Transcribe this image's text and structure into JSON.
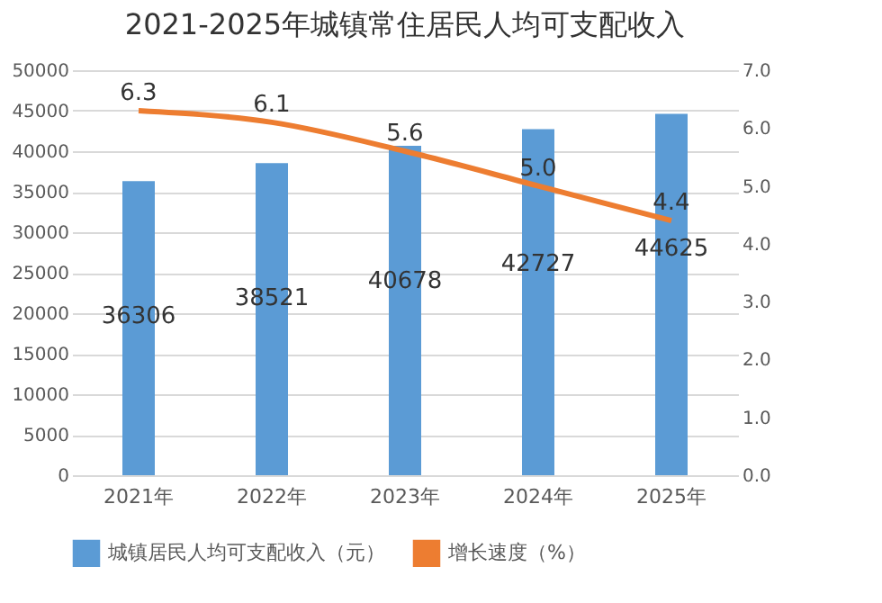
{
  "chart_data": {
    "type": "bar",
    "title": "2021-2025年城镇常住居民人均可支配收入",
    "categories": [
      "2021年",
      "2022年",
      "2023年",
      "2024年",
      "2025年"
    ],
    "series": [
      {
        "name": "城镇居民人均可支配收入（元）",
        "color": "#5b9bd5",
        "values": [
          36306,
          38521,
          40678,
          42727,
          44625
        ],
        "value_labels": [
          "36306",
          "38521",
          "40678",
          "42727",
          "44625"
        ]
      },
      {
        "name": "增长速度（%）",
        "type": "line",
        "axis": "y2",
        "color": "#ed7d31",
        "values": [
          6.3,
          6.1,
          5.6,
          5.0,
          4.4
        ],
        "value_labels": [
          "6.3",
          "6.1",
          "5.6",
          "5.0",
          "4.4"
        ]
      }
    ],
    "ylim": [
      0,
      50000
    ],
    "yticks": [
      0,
      5000,
      10000,
      15000,
      20000,
      25000,
      30000,
      35000,
      40000,
      45000,
      50000
    ],
    "y2lim": [
      0,
      7
    ],
    "y2ticks": [
      {
        "value": 0,
        "label": "0.0"
      },
      {
        "value": 1,
        "label": "1.0"
      },
      {
        "value": 2,
        "label": "2.0"
      },
      {
        "value": 3,
        "label": "3.0"
      },
      {
        "value": 4,
        "label": "4.0"
      },
      {
        "value": 5,
        "label": "5.0"
      },
      {
        "value": 6,
        "label": "6.0"
      },
      {
        "value": 7,
        "label": "7.0"
      }
    ],
    "grid": "y",
    "legend": "bottom",
    "marker": "none",
    "line_style": "solid"
  }
}
